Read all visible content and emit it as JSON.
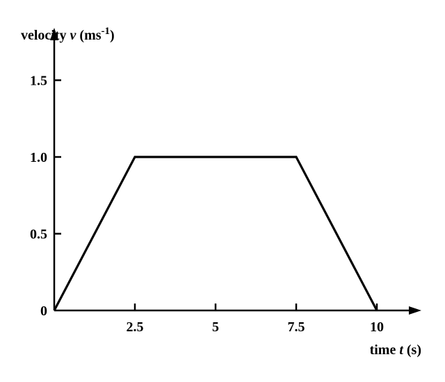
{
  "chart_data": {
    "type": "line",
    "x": [
      0,
      2.5,
      7.5,
      10
    ],
    "series": [
      {
        "values": [
          0,
          1.0,
          1.0,
          0
        ]
      }
    ],
    "xlabel": {
      "text": "time ",
      "var": "t",
      "unit": " (s)"
    },
    "ylabel": {
      "text": "velocity ",
      "var": "v",
      "unit": " (ms",
      "exp": "-1",
      "close": ")"
    },
    "x_ticks": [
      {
        "value": 2.5,
        "label": "2.5"
      },
      {
        "value": 5,
        "label": "5"
      },
      {
        "value": 7.5,
        "label": "7.5"
      },
      {
        "value": 10,
        "label": "10"
      }
    ],
    "y_ticks": [
      {
        "value": 0.5,
        "label": "0.5"
      },
      {
        "value": 1.0,
        "label": "1.0"
      },
      {
        "value": 1.5,
        "label": "1.5"
      }
    ],
    "origin_label": "0",
    "xlim": [
      0,
      11.5
    ],
    "ylim": [
      0,
      1.8
    ],
    "grid": false,
    "colors": {
      "line": "#000000",
      "axes": "#000000"
    }
  }
}
